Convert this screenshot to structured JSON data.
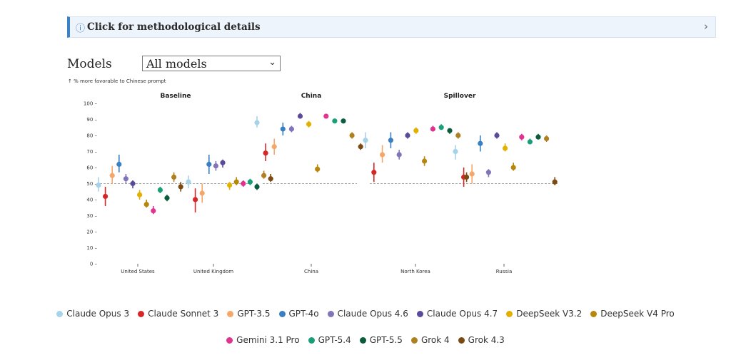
{
  "banner": {
    "info_icon": "info-icon",
    "label": "Click for methodological details",
    "chevron": "chevron-right-icon"
  },
  "controls": {
    "models_label": "Models",
    "models_selected": "All models"
  },
  "chart_data": {
    "type": "scatter",
    "y_note": "↑ % more favorable to Chinese prompt",
    "ylim": [
      0,
      100
    ],
    "yticks": [
      0,
      10,
      20,
      30,
      40,
      50,
      60,
      70,
      80,
      90,
      100
    ],
    "reference_line": 50,
    "panels": [
      "Baseline",
      "China",
      "Spillover"
    ],
    "categories": [
      {
        "name": "United States",
        "panel": "Baseline"
      },
      {
        "name": "United Kingdom",
        "panel": "Baseline"
      },
      {
        "name": "China",
        "panel": "China"
      },
      {
        "name": "North Korea",
        "panel": "Spillover"
      },
      {
        "name": "Russia",
        "panel": "Spillover"
      }
    ],
    "series": [
      {
        "name": "Claude Opus 3",
        "color": "#a6d2ea",
        "values": [
          {
            "y": 49,
            "lo": 45,
            "hi": 54
          },
          {
            "y": 51,
            "lo": 47,
            "hi": 55
          },
          {
            "y": 88,
            "lo": 85,
            "hi": 92
          },
          {
            "y": 77,
            "lo": 72,
            "hi": 82
          },
          {
            "y": 70,
            "lo": 65,
            "hi": 74
          }
        ]
      },
      {
        "name": "Claude Sonnet 3",
        "color": "#d62728",
        "values": [
          {
            "y": 42,
            "lo": 36,
            "hi": 48
          },
          {
            "y": 40,
            "lo": 32,
            "hi": 47
          },
          {
            "y": 69,
            "lo": 64,
            "hi": 75
          },
          {
            "y": 57,
            "lo": 51,
            "hi": 63
          },
          {
            "y": 54,
            "lo": 48,
            "hi": 60
          }
        ]
      },
      {
        "name": "GPT-3.5",
        "color": "#f5a76a",
        "values": [
          {
            "y": 55,
            "lo": 50,
            "hi": 61
          },
          {
            "y": 44,
            "lo": 38,
            "hi": 50
          },
          {
            "y": 73,
            "lo": 68,
            "hi": 78
          },
          {
            "y": 68,
            "lo": 63,
            "hi": 74
          },
          {
            "y": 56,
            "lo": 50,
            "hi": 62
          }
        ]
      },
      {
        "name": "GPT-4o",
        "color": "#3a7fc1",
        "values": [
          {
            "y": 62,
            "lo": 57,
            "hi": 68
          },
          {
            "y": 62,
            "lo": 56,
            "hi": 68
          },
          {
            "y": 84,
            "lo": 80,
            "hi": 88
          },
          {
            "y": 77,
            "lo": 72,
            "hi": 82
          },
          {
            "y": 75,
            "lo": 70,
            "hi": 80
          }
        ]
      },
      {
        "name": "Claude Opus 4.6",
        "color": "#8274b8",
        "values": [
          {
            "y": 53,
            "lo": 50,
            "hi": 56
          },
          {
            "y": 61,
            "lo": 58,
            "hi": 64
          },
          {
            "y": 84,
            "lo": 82,
            "hi": 86
          },
          {
            "y": 68,
            "lo": 65,
            "hi": 71
          },
          {
            "y": 57,
            "lo": 54,
            "hi": 59
          }
        ]
      },
      {
        "name": "Claude Opus 4.7",
        "color": "#5b4a9a",
        "values": [
          {
            "y": 50,
            "lo": 47,
            "hi": 52
          },
          {
            "y": 63,
            "lo": 60,
            "hi": 65
          },
          {
            "y": 92,
            "lo": 91,
            "hi": 94
          },
          {
            "y": 80,
            "lo": 78,
            "hi": 82
          },
          {
            "y": 80,
            "lo": 78,
            "hi": 82
          }
        ]
      },
      {
        "name": "DeepSeek V3.2",
        "color": "#e2b000",
        "values": [
          {
            "y": 43,
            "lo": 40,
            "hi": 46
          },
          {
            "y": 49,
            "lo": 46,
            "hi": 51
          },
          {
            "y": 87,
            "lo": 85,
            "hi": 89
          },
          {
            "y": 83,
            "lo": 81,
            "hi": 85
          },
          {
            "y": 72,
            "lo": 70,
            "hi": 75
          }
        ]
      },
      {
        "name": "DeepSeek V4 Pro",
        "color": "#b8860b",
        "values": [
          {
            "y": 37,
            "lo": 35,
            "hi": 40
          },
          {
            "y": 51,
            "lo": 49,
            "hi": 54
          },
          {
            "y": 59,
            "lo": 57,
            "hi": 62
          },
          {
            "y": 64,
            "lo": 61,
            "hi": 67
          },
          {
            "y": 60,
            "lo": 58,
            "hi": 63
          }
        ]
      },
      {
        "name": "Gemini 3.1 Pro",
        "color": "#e0338f",
        "values": [
          {
            "y": 33,
            "lo": 31,
            "hi": 36
          },
          {
            "y": 50,
            "lo": 48,
            "hi": 52
          },
          {
            "y": 92,
            "lo": 91,
            "hi": 93
          },
          {
            "y": 84,
            "lo": 83,
            "hi": 86
          },
          {
            "y": 79,
            "lo": 77,
            "hi": 81
          }
        ]
      },
      {
        "name": "GPT-5.4",
        "color": "#1a9e77",
        "values": [
          {
            "y": 46,
            "lo": 44,
            "hi": 48
          },
          {
            "y": 51,
            "lo": 49,
            "hi": 53
          },
          {
            "y": 89,
            "lo": 88,
            "hi": 90
          },
          {
            "y": 85,
            "lo": 84,
            "hi": 87
          },
          {
            "y": 76,
            "lo": 75,
            "hi": 78
          }
        ]
      },
      {
        "name": "GPT-5.5",
        "color": "#0a5c3c",
        "values": [
          {
            "y": 41,
            "lo": 39,
            "hi": 43
          },
          {
            "y": 48,
            "lo": 46,
            "hi": 50
          },
          {
            "y": 89,
            "lo": 88,
            "hi": 90
          },
          {
            "y": 83,
            "lo": 81,
            "hi": 84
          },
          {
            "y": 79,
            "lo": 78,
            "hi": 81
          }
        ]
      },
      {
        "name": "Grok 4",
        "color": "#b08020",
        "values": [
          {
            "y": 54,
            "lo": 51,
            "hi": 57
          },
          {
            "y": 55,
            "lo": 53,
            "hi": 58
          },
          {
            "y": 80,
            "lo": 78,
            "hi": 82
          },
          {
            "y": 80,
            "lo": 78,
            "hi": 82
          },
          {
            "y": 78,
            "lo": 76,
            "hi": 80
          }
        ]
      },
      {
        "name": "Grok 4.3",
        "color": "#7a4a12",
        "values": [
          {
            "y": 48,
            "lo": 45,
            "hi": 51
          },
          {
            "y": 53,
            "lo": 51,
            "hi": 56
          },
          {
            "y": 73,
            "lo": 71,
            "hi": 75
          },
          {
            "y": 54,
            "lo": 51,
            "hi": 57
          },
          {
            "y": 51,
            "lo": 49,
            "hi": 54
          }
        ]
      }
    ]
  }
}
